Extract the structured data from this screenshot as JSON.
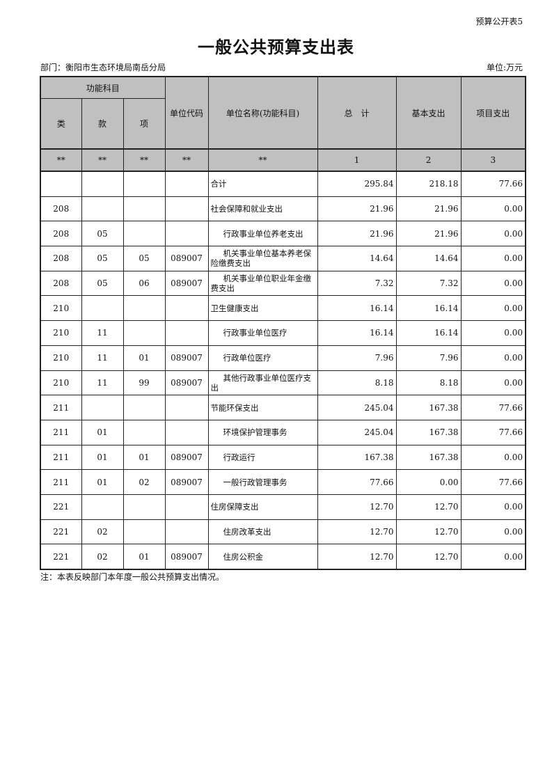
{
  "corner_label": "预算公开表5",
  "title": "一般公共预算支出表",
  "department": "部门：衡阳市生态环境局南岳分局",
  "unit": "单位:万元",
  "headers": {
    "function_subject": "功能科目",
    "lei": "类",
    "kuan": "款",
    "xiang": "项",
    "unit_code": "单位代码",
    "unit_name": "单位名称(功能科目)",
    "total": "总　计",
    "basic": "基本支出",
    "project": "项目支出",
    "idx": [
      "**",
      "**",
      "**",
      "**",
      "**",
      "1",
      "2",
      "3"
    ]
  },
  "rows": [
    {
      "lei": "",
      "kuan": "",
      "xiang": "",
      "code": "",
      "name": "合计",
      "level": 1,
      "total": "295.84",
      "basic": "218.18",
      "project": "77.66"
    },
    {
      "lei": "208",
      "kuan": "",
      "xiang": "",
      "code": "",
      "name": "社会保障和就业支出",
      "level": 1,
      "total": "21.96",
      "basic": "21.96",
      "project": "0.00"
    },
    {
      "lei": "208",
      "kuan": "05",
      "xiang": "",
      "code": "",
      "name": "行政事业单位养老支出",
      "level": 2,
      "total": "21.96",
      "basic": "21.96",
      "project": "0.00"
    },
    {
      "lei": "208",
      "kuan": "05",
      "xiang": "05",
      "code": "089007",
      "name": "机关事业单位基本养老保险缴费支出",
      "level": 3,
      "total": "14.64",
      "basic": "14.64",
      "project": "0.00"
    },
    {
      "lei": "208",
      "kuan": "05",
      "xiang": "06",
      "code": "089007",
      "name": "机关事业单位职业年金缴费支出",
      "level": 3,
      "total": "7.32",
      "basic": "7.32",
      "project": "0.00"
    },
    {
      "lei": "210",
      "kuan": "",
      "xiang": "",
      "code": "",
      "name": "卫生健康支出",
      "level": 1,
      "total": "16.14",
      "basic": "16.14",
      "project": "0.00"
    },
    {
      "lei": "210",
      "kuan": "11",
      "xiang": "",
      "code": "",
      "name": "行政事业单位医疗",
      "level": 2,
      "total": "16.14",
      "basic": "16.14",
      "project": "0.00"
    },
    {
      "lei": "210",
      "kuan": "11",
      "xiang": "01",
      "code": "089007",
      "name": "行政单位医疗",
      "level": 3,
      "total": "7.96",
      "basic": "7.96",
      "project": "0.00"
    },
    {
      "lei": "210",
      "kuan": "11",
      "xiang": "99",
      "code": "089007",
      "name": "其他行政事业单位医疗支出",
      "level": 3,
      "total": "8.18",
      "basic": "8.18",
      "project": "0.00"
    },
    {
      "lei": "211",
      "kuan": "",
      "xiang": "",
      "code": "",
      "name": "节能环保支出",
      "level": 1,
      "total": "245.04",
      "basic": "167.38",
      "project": "77.66"
    },
    {
      "lei": "211",
      "kuan": "01",
      "xiang": "",
      "code": "",
      "name": "环境保护管理事务",
      "level": 2,
      "total": "245.04",
      "basic": "167.38",
      "project": "77.66"
    },
    {
      "lei": "211",
      "kuan": "01",
      "xiang": "01",
      "code": "089007",
      "name": "行政运行",
      "level": 3,
      "total": "167.38",
      "basic": "167.38",
      "project": "0.00"
    },
    {
      "lei": "211",
      "kuan": "01",
      "xiang": "02",
      "code": "089007",
      "name": "一般行政管理事务",
      "level": 3,
      "total": "77.66",
      "basic": "0.00",
      "project": "77.66"
    },
    {
      "lei": "221",
      "kuan": "",
      "xiang": "",
      "code": "",
      "name": "住房保障支出",
      "level": 1,
      "total": "12.70",
      "basic": "12.70",
      "project": "0.00"
    },
    {
      "lei": "221",
      "kuan": "02",
      "xiang": "",
      "code": "",
      "name": "住房改革支出",
      "level": 2,
      "total": "12.70",
      "basic": "12.70",
      "project": "0.00"
    },
    {
      "lei": "221",
      "kuan": "02",
      "xiang": "01",
      "code": "089007",
      "name": "住房公积金",
      "level": 3,
      "total": "12.70",
      "basic": "12.70",
      "project": "0.00"
    }
  ],
  "note": "注：本表反映部门本年度一般公共预算支出情况。"
}
